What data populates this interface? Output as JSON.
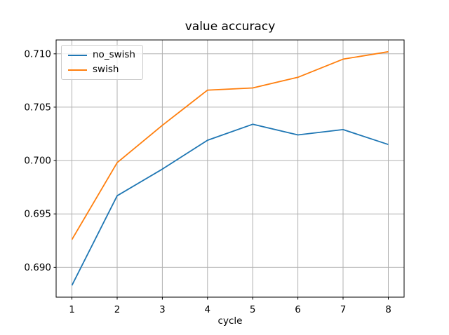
{
  "chart_data": {
    "type": "line",
    "title": "value accuracy",
    "xlabel": "cycle",
    "ylabel": "",
    "x": [
      1,
      2,
      3,
      4,
      5,
      6,
      7,
      8
    ],
    "series": [
      {
        "name": "no_swish",
        "color": "#1f77b4",
        "values": [
          0.6883,
          0.6967,
          0.6992,
          0.7019,
          0.7034,
          0.7024,
          0.7029,
          0.7015
        ]
      },
      {
        "name": "swish",
        "color": "#ff7f0e",
        "values": [
          0.6926,
          0.6998,
          0.7033,
          0.7066,
          0.7068,
          0.7078,
          0.7095,
          0.7102
        ]
      }
    ],
    "xlim": [
      0.65,
      8.35
    ],
    "ylim": [
      0.6872,
      0.7113
    ],
    "x_ticks": [
      1,
      2,
      3,
      4,
      5,
      6,
      7,
      8
    ],
    "x_tick_labels": [
      "1",
      "2",
      "3",
      "4",
      "5",
      "6",
      "7",
      "8"
    ],
    "y_ticks": [
      0.69,
      0.695,
      0.7,
      0.705,
      0.71
    ],
    "y_tick_labels": [
      "0.690",
      "0.695",
      "0.700",
      "0.705",
      "0.710"
    ],
    "grid": true,
    "grid_color": "#b0b0b0",
    "axis_color": "#000000",
    "legend_position": "upper left"
  }
}
